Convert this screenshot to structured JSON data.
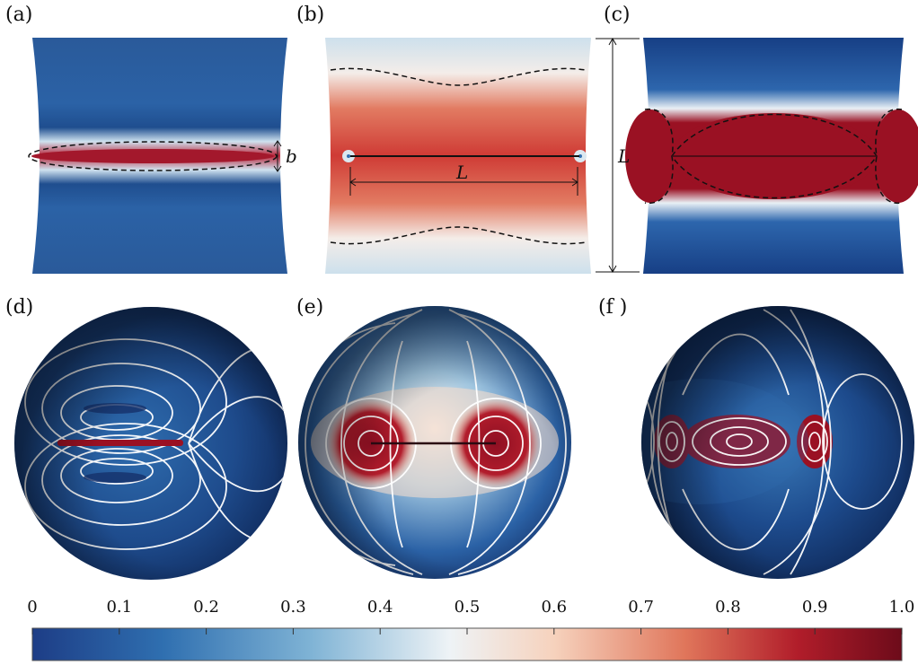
{
  "figure": {
    "panels": [
      {
        "id": "a",
        "label": "(a)"
      },
      {
        "id": "b",
        "label": "(b)"
      },
      {
        "id": "c",
        "label": "(c)"
      },
      {
        "id": "d",
        "label": "(d)"
      },
      {
        "id": "e",
        "label": "(e)"
      },
      {
        "id": "f",
        "label": "(f )"
      }
    ],
    "annotations": {
      "b_width": "b",
      "length_inner": "L",
      "length_outer": "L"
    },
    "colorbar": {
      "ticks": [
        "0",
        "0.1",
        "0.2",
        "0.3",
        "0.4",
        "0.5",
        "0.6",
        "0.7",
        "0.8",
        "0.9",
        "1.0"
      ],
      "colormap": [
        "#1d3d86",
        "#2f6fb0",
        "#7fb3d5",
        "#e9f1f6",
        "#f6d2bd",
        "#e0765b",
        "#b11d2a",
        "#6d0b1a"
      ]
    }
  }
}
